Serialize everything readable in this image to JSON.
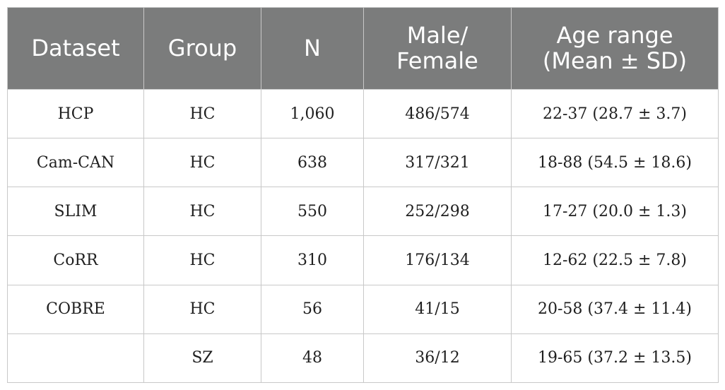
{
  "table": {
    "headers": [
      {
        "lines": [
          "Dataset"
        ]
      },
      {
        "lines": [
          "Group"
        ]
      },
      {
        "lines": [
          "N"
        ]
      },
      {
        "lines": [
          "Male/",
          "Female"
        ]
      },
      {
        "lines": [
          "Age range",
          "(Mean ± SD)"
        ]
      }
    ],
    "rows": [
      {
        "dataset": "HCP",
        "group": "HC",
        "n": "1,060",
        "male_female": "486/574",
        "age": "22-37 (28.7 ± 3.7)"
      },
      {
        "dataset": "Cam-CAN",
        "group": "HC",
        "n": "638",
        "male_female": "317/321",
        "age": "18-88 (54.5 ± 18.6)"
      },
      {
        "dataset": "SLIM",
        "group": "HC",
        "n": "550",
        "male_female": "252/298",
        "age": "17-27 (20.0 ± 1.3)"
      },
      {
        "dataset": "CoRR",
        "group": "HC",
        "n": "310",
        "male_female": "176/134",
        "age": "12-62 (22.5 ± 7.8)"
      },
      {
        "dataset": "COBRE",
        "group": "HC",
        "n": "56",
        "male_female": "41/15",
        "age": "20-58 (37.4 ± 11.4)"
      },
      {
        "dataset": "",
        "group": "SZ",
        "n": "48",
        "male_female": "36/12",
        "age": "19-65 (37.2 ± 13.5)"
      }
    ]
  }
}
